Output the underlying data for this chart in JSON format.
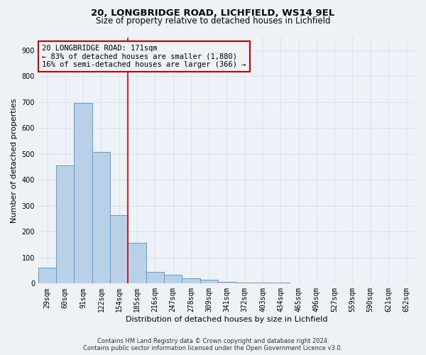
{
  "title1": "20, LONGBRIDGE ROAD, LICHFIELD, WS14 9EL",
  "title2": "Size of property relative to detached houses in Lichfield",
  "xlabel": "Distribution of detached houses by size in Lichfield",
  "ylabel": "Number of detached properties",
  "categories": [
    "29sqm",
    "60sqm",
    "91sqm",
    "122sqm",
    "154sqm",
    "185sqm",
    "216sqm",
    "247sqm",
    "278sqm",
    "309sqm",
    "341sqm",
    "372sqm",
    "403sqm",
    "434sqm",
    "465sqm",
    "496sqm",
    "527sqm",
    "559sqm",
    "590sqm",
    "621sqm",
    "652sqm"
  ],
  "values": [
    62,
    456,
    697,
    509,
    265,
    157,
    46,
    33,
    20,
    14,
    6,
    3,
    3,
    5,
    1,
    0,
    0,
    0,
    0,
    0,
    0
  ],
  "bar_color": "#b8d0e8",
  "bar_edge_color": "#5a9fd4",
  "vline_x": 4.5,
  "vline_color": "#cc0000",
  "annotation_text": "20 LONGBRIDGE ROAD: 171sqm\n← 83% of detached houses are smaller (1,880)\n16% of semi-detached houses are larger (366) →",
  "annotation_box_color": "#cc0000",
  "ylim": [
    0,
    950
  ],
  "yticks": [
    0,
    100,
    200,
    300,
    400,
    500,
    600,
    700,
    800,
    900
  ],
  "footer_line1": "Contains HM Land Registry data © Crown copyright and database right 2024.",
  "footer_line2": "Contains public sector information licensed under the Open Government Licence v3.0.",
  "bg_color": "#eef2f7",
  "grid_color": "#d8e4f0",
  "title1_fontsize": 9.5,
  "title2_fontsize": 8.5,
  "xlabel_fontsize": 8,
  "ylabel_fontsize": 8,
  "tick_fontsize": 7,
  "annot_fontsize": 7.5,
  "footer_fontsize": 6
}
